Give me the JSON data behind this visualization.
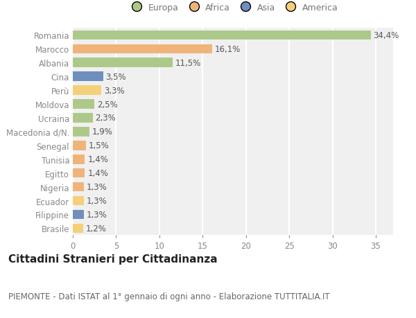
{
  "categories": [
    "Romania",
    "Marocco",
    "Albania",
    "Cina",
    "Perù",
    "Moldova",
    "Ucraina",
    "Macedonia d/N.",
    "Senegal",
    "Tunisia",
    "Egitto",
    "Nigeria",
    "Ecuador",
    "Filippine",
    "Brasile"
  ],
  "values": [
    34.4,
    16.1,
    11.5,
    3.5,
    3.3,
    2.5,
    2.3,
    1.9,
    1.5,
    1.4,
    1.4,
    1.3,
    1.3,
    1.3,
    1.2
  ],
  "labels": [
    "34,4%",
    "16,1%",
    "11,5%",
    "3,5%",
    "3,3%",
    "2,5%",
    "2,3%",
    "1,9%",
    "1,5%",
    "1,4%",
    "1,4%",
    "1,3%",
    "1,3%",
    "1,3%",
    "1,2%"
  ],
  "colors": [
    "#adc98a",
    "#f0b47a",
    "#adc98a",
    "#6e8fbe",
    "#f5d07a",
    "#adc98a",
    "#adc98a",
    "#adc98a",
    "#f0b47a",
    "#f0b47a",
    "#f0b47a",
    "#f0b47a",
    "#f5d07a",
    "#6e8fbe",
    "#f5d07a"
  ],
  "legend_labels": [
    "Europa",
    "Africa",
    "Asia",
    "America"
  ],
  "legend_colors": [
    "#adc98a",
    "#f0b47a",
    "#6e8fbe",
    "#f5d07a"
  ],
  "xlim": [
    0,
    37
  ],
  "xticks": [
    0,
    5,
    10,
    15,
    20,
    25,
    30,
    35
  ],
  "title": "Cittadini Stranieri per Cittadinanza",
  "subtitle": "PIEMONTE - Dati ISTAT al 1° gennaio di ogni anno - Elaborazione TUTTITALIA.IT",
  "background_color": "#ffffff",
  "plot_bg_color": "#f0f0f0",
  "grid_color": "#ffffff",
  "tick_color": "#888888",
  "label_fontsize": 8.5,
  "title_fontsize": 11,
  "subtitle_fontsize": 8.5
}
